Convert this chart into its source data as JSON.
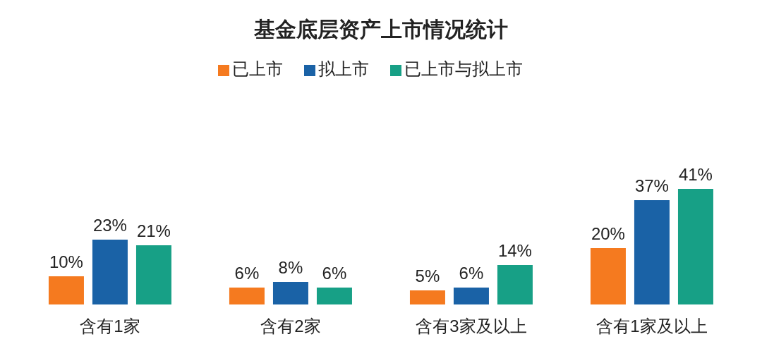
{
  "chart_data": {
    "type": "bar",
    "title": "基金底层资产上市情况统计",
    "categories": [
      "含有1家",
      "含有2家",
      "含有3家及以上",
      "含有1家及以上"
    ],
    "series": [
      {
        "name": "已上市",
        "color": "#f57a1f",
        "values": [
          10,
          6,
          5,
          20
        ],
        "value_labels": [
          "10%",
          "6%",
          "5%",
          "20%"
        ]
      },
      {
        "name": "拟上市",
        "color": "#1a62a6",
        "values": [
          23,
          8,
          6,
          37
        ],
        "value_labels": [
          "23%",
          "8%",
          "6%",
          "37%"
        ]
      },
      {
        "name": "已上市与拟上市",
        "color": "#17a086",
        "values": [
          21,
          6,
          14,
          41
        ],
        "value_labels": [
          "21%",
          "6%",
          "14%",
          "41%"
        ]
      }
    ],
    "legend": "top",
    "grid": false
  }
}
